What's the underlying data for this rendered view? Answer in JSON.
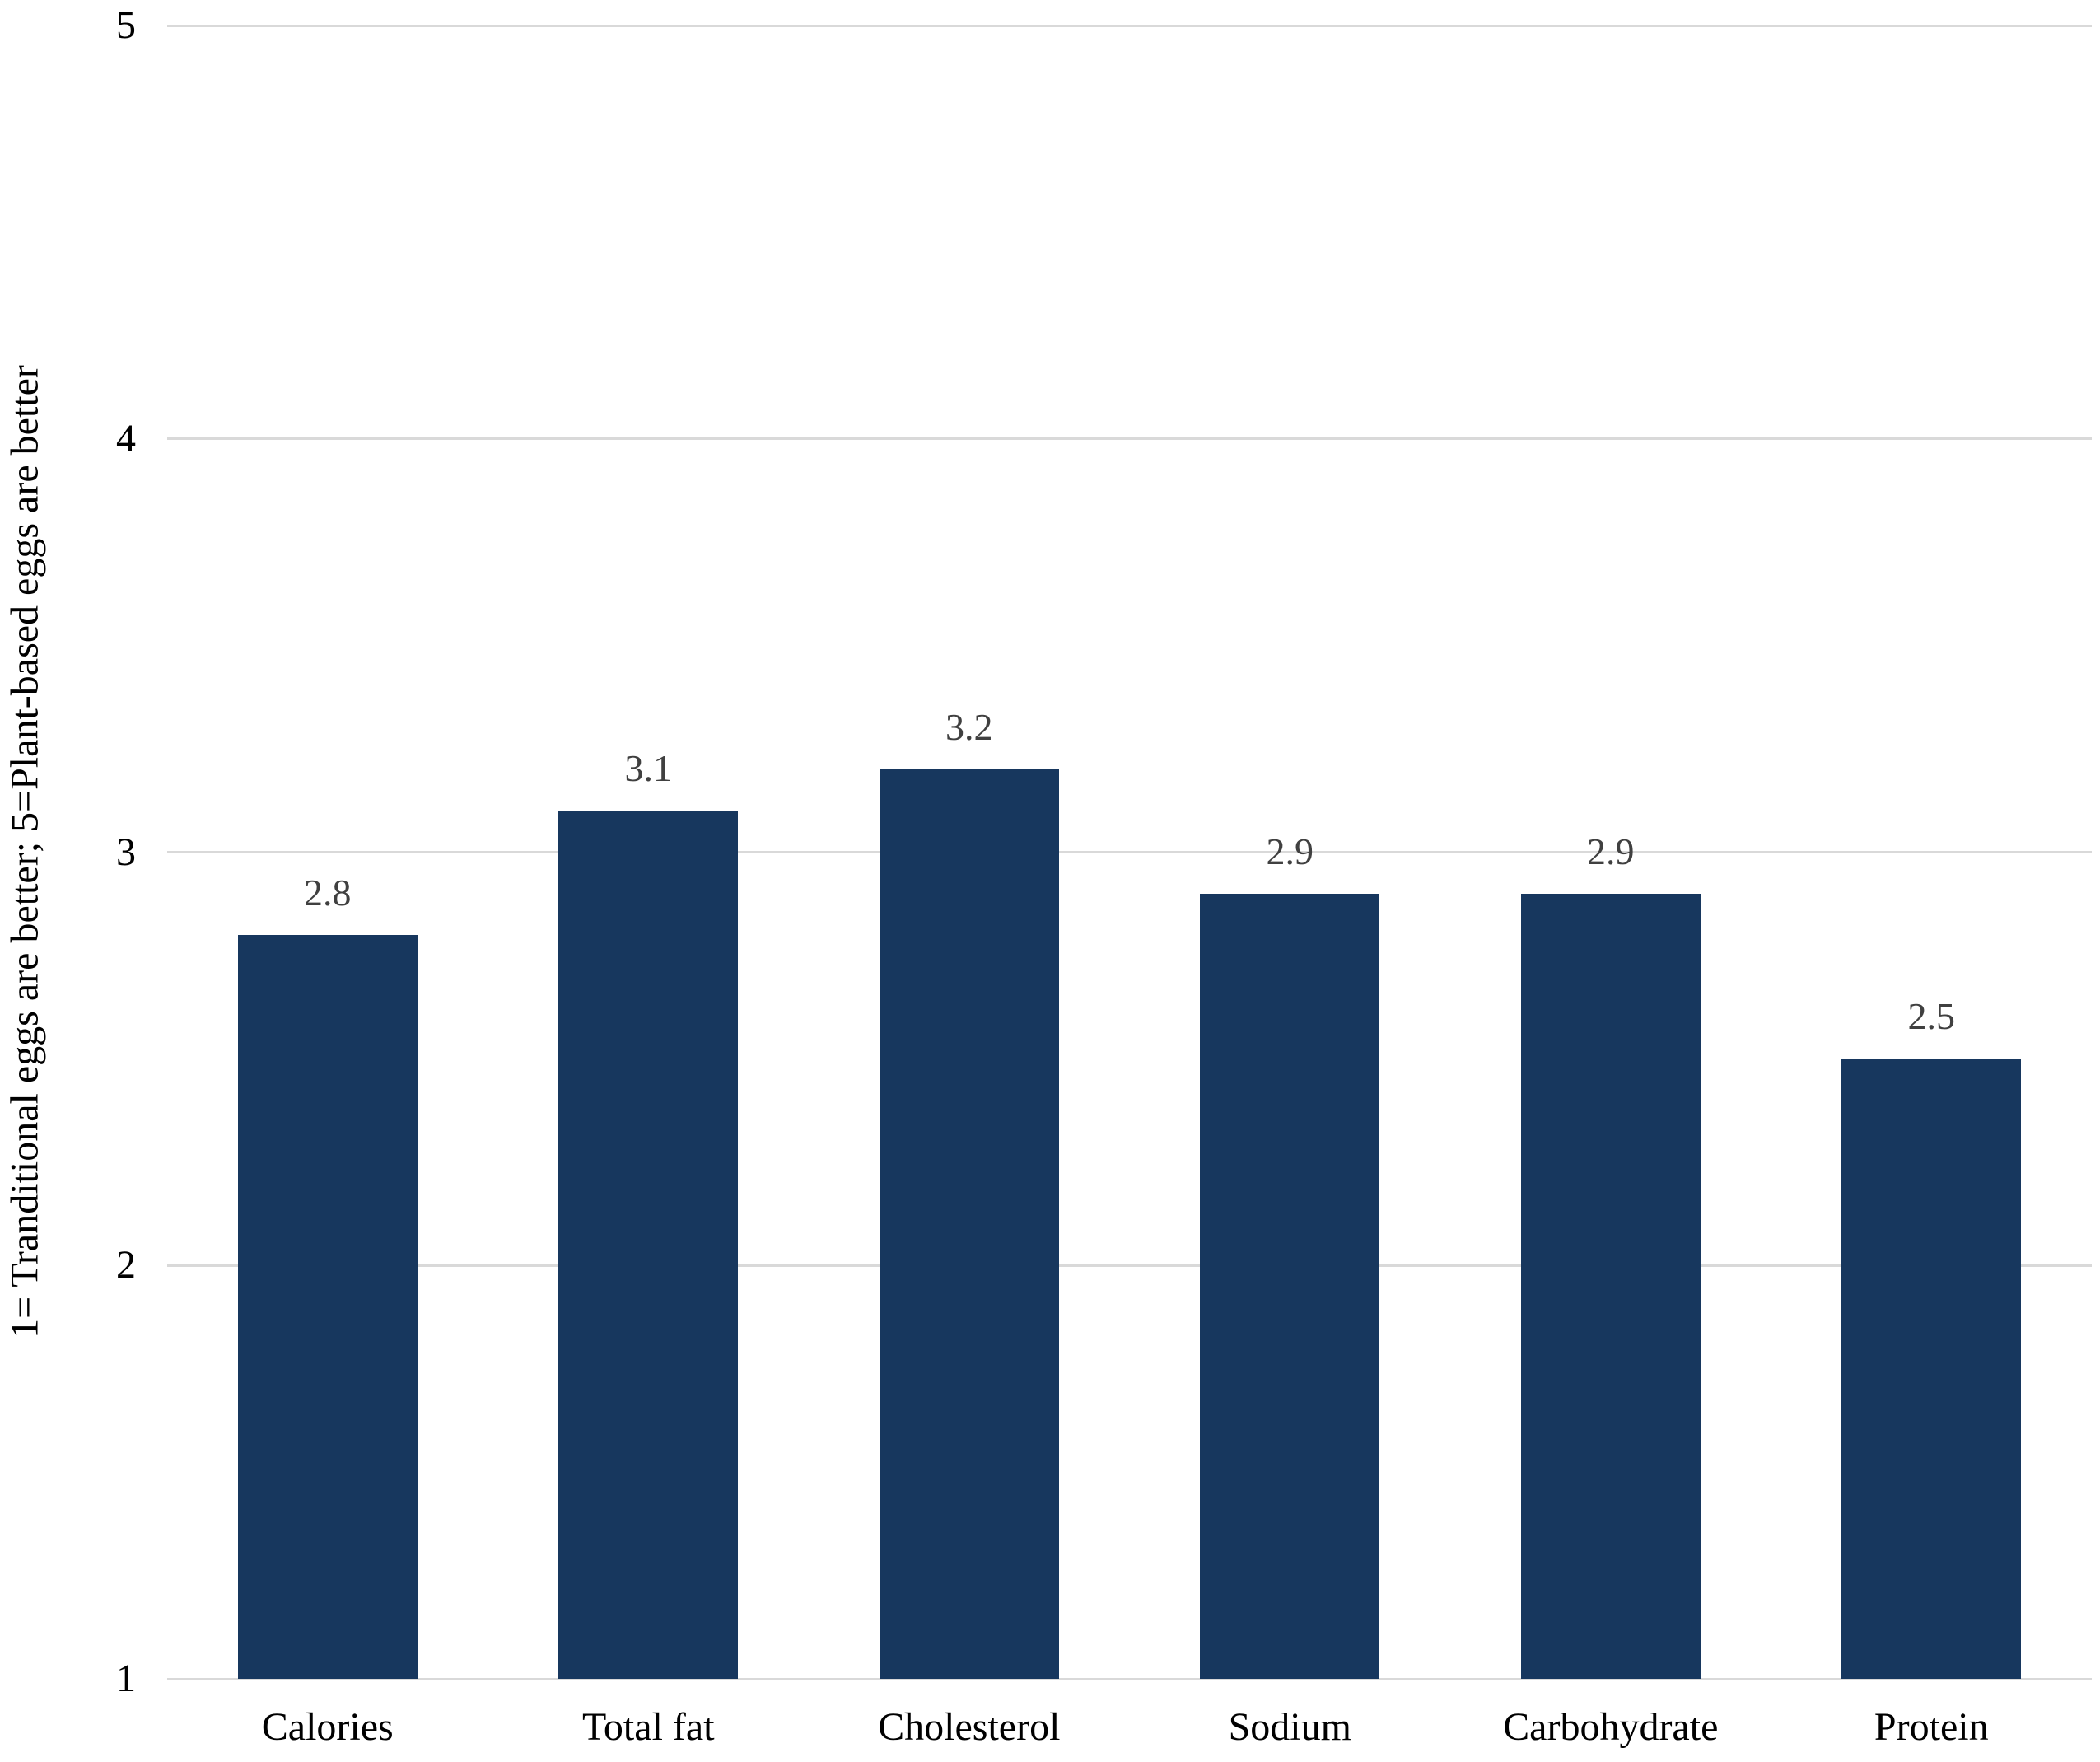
{
  "chart_data": {
    "type": "bar",
    "categories": [
      "Calories",
      "Total fat",
      "Cholesterol",
      "Sodium",
      "Carbohydrate",
      "Protein"
    ],
    "values": [
      2.8,
      3.1,
      3.2,
      2.9,
      2.9,
      2.5
    ],
    "data_labels": [
      "2.8",
      "3.1",
      "3.2",
      "2.9",
      "2.9",
      "2.5"
    ],
    "title": "",
    "xlabel": "",
    "ylabel": "1= Tranditional eggs are better; 5=Plant-based eggs are better",
    "ylim": [
      1,
      5
    ],
    "yticks": [
      "1",
      "2",
      "3",
      "4",
      "5"
    ],
    "grid": "horizontal",
    "legend": "none",
    "colors": {
      "bar": "#17375E",
      "gridline": "#D9D9D9",
      "axis_line": "#D9D9D9",
      "tick_label": "#000000",
      "data_label": "#404040",
      "category_label": "#000000"
    }
  }
}
